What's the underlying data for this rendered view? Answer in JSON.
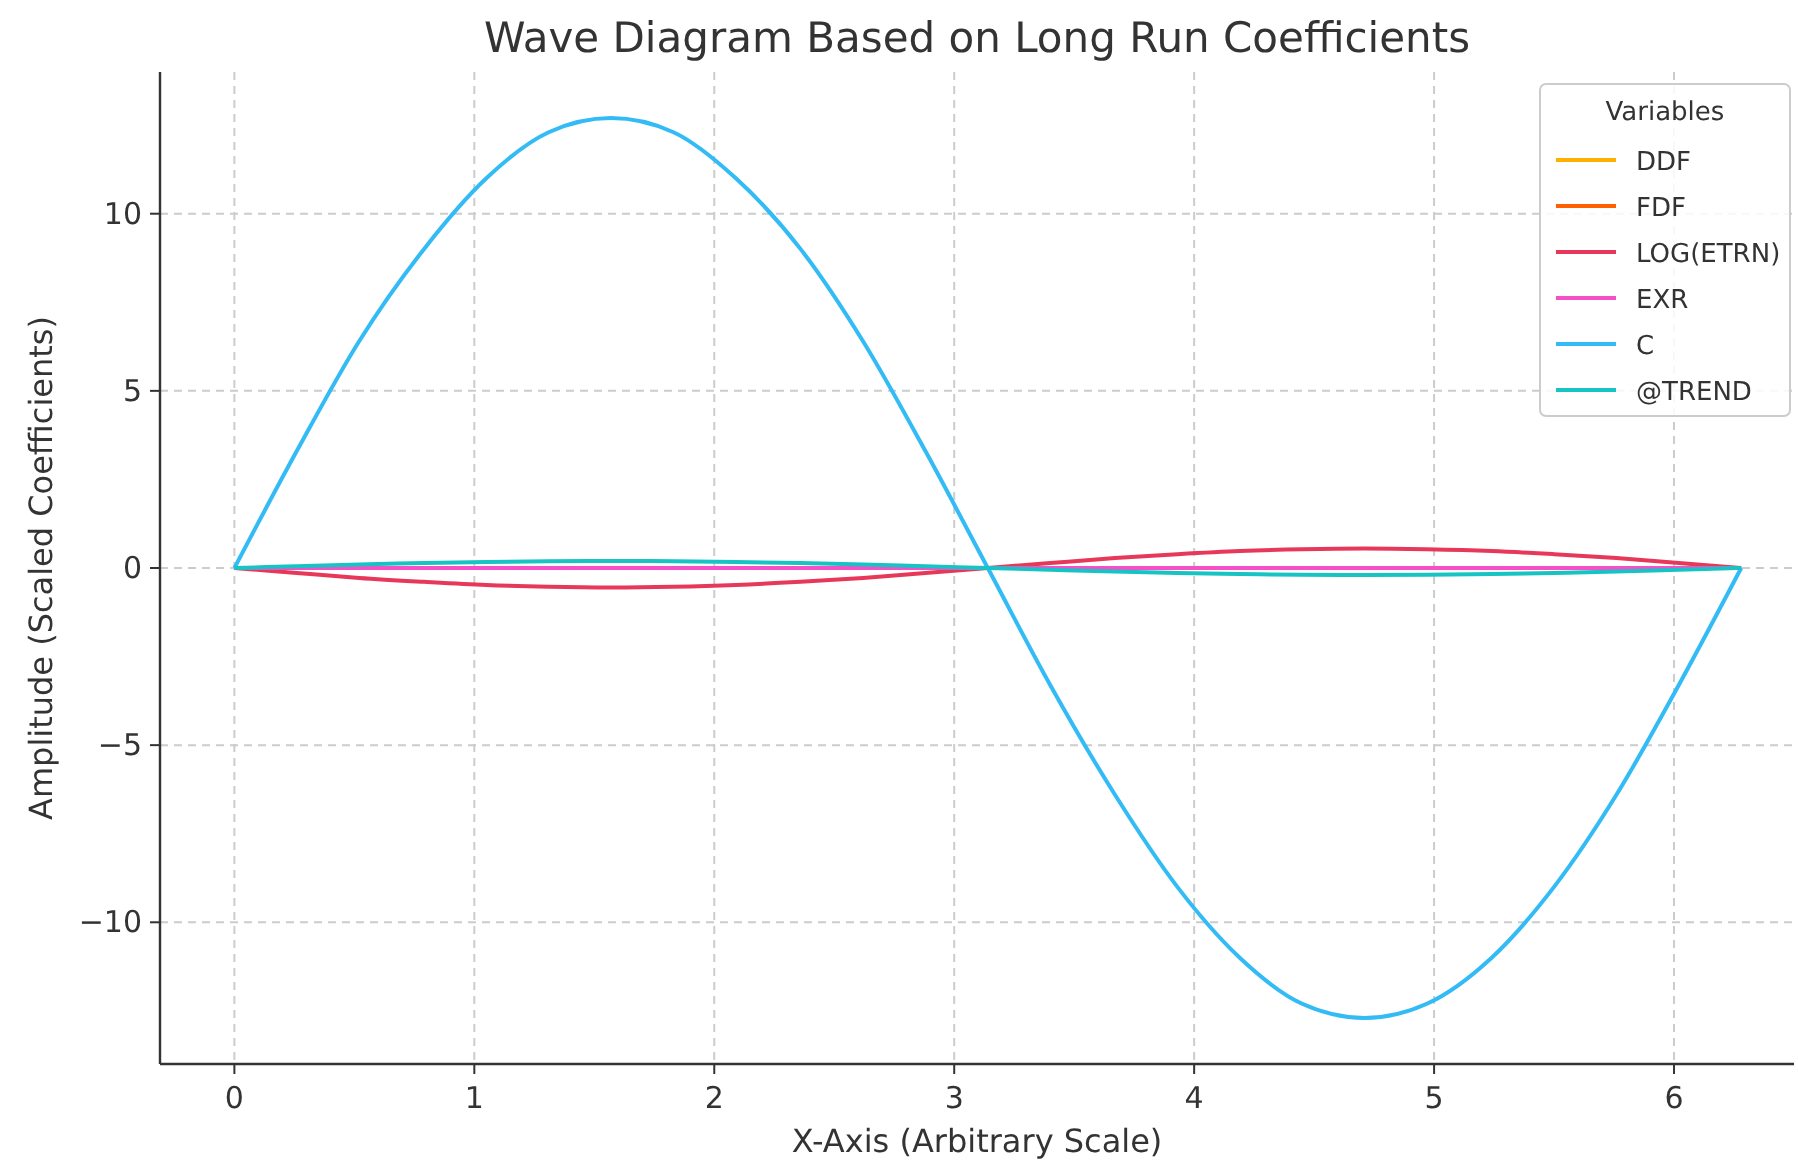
{
  "chart_data": {
    "type": "line",
    "title": "Wave Diagram Based on Long Run Coefficients",
    "xlabel": "X-Axis (Arbitrary Scale)",
    "ylabel": "Amplitude (Scaled Coefficients)",
    "legend_title": "Variables",
    "legend": "top right",
    "grid": true,
    "line_style": "solid",
    "x": [
      0,
      0.26,
      0.52,
      0.79,
      1.05,
      1.31,
      1.57,
      1.83,
      2.09,
      2.36,
      2.62,
      2.88,
      3.14,
      3.4,
      3.67,
      3.93,
      4.19,
      4.45,
      4.71,
      4.97,
      5.24,
      5.5,
      5.76,
      6.02,
      6.28
    ],
    "xlim": [
      -0.31,
      6.5
    ],
    "xticks": [
      0,
      1,
      2,
      3,
      4,
      5,
      6
    ],
    "ylim": [
      -14,
      14
    ],
    "yticks": [
      -10,
      -5,
      0,
      5,
      10
    ],
    "series": [
      {
        "name": "DDF",
        "color": "#ffb000",
        "values": [
          null,
          null,
          null,
          null,
          null,
          null,
          null,
          null,
          null,
          null,
          null,
          null,
          null,
          null,
          null,
          null,
          null,
          null,
          null,
          null,
          null,
          null,
          null,
          null,
          null
        ]
      },
      {
        "name": "FDF",
        "color": "#fe6100",
        "values": [
          null,
          null,
          null,
          null,
          null,
          null,
          null,
          null,
          null,
          null,
          null,
          null,
          null,
          null,
          null,
          null,
          null,
          null,
          null,
          null,
          null,
          null,
          null,
          null,
          null
        ]
      },
      {
        "name": "LOG(ETRN)",
        "color": "#e8385a",
        "values": [
          0,
          -0.14,
          -0.28,
          -0.39,
          -0.48,
          -0.53,
          -0.55,
          -0.53,
          -0.48,
          -0.39,
          -0.28,
          -0.14,
          0,
          0.14,
          0.28,
          0.39,
          0.48,
          0.53,
          0.55,
          0.53,
          0.48,
          0.39,
          0.28,
          0.14,
          0
        ]
      },
      {
        "name": "EXR",
        "color": "#f550c8",
        "values": [
          0,
          0,
          0,
          0,
          0,
          0,
          0,
          0,
          0,
          0,
          0,
          0,
          0,
          0,
          0,
          0,
          0,
          0,
          0,
          0,
          0,
          0,
          0,
          0,
          0
        ]
      },
      {
        "name": "C",
        "color": "#33bbf5",
        "values": [
          0,
          3.3,
          6.4,
          9.0,
          11.0,
          12.3,
          12.7,
          12.3,
          11.0,
          9.0,
          6.4,
          3.3,
          0,
          -3.3,
          -6.4,
          -9.0,
          -11.0,
          -12.3,
          -12.7,
          -12.3,
          -11.0,
          -9.0,
          -6.4,
          -3.3,
          0
        ]
      },
      {
        "name": "@TREND",
        "color": "#17c3c3",
        "values": [
          0,
          0.05,
          0.1,
          0.14,
          0.17,
          0.19,
          0.2,
          0.19,
          0.17,
          0.14,
          0.1,
          0.05,
          0,
          -0.05,
          -0.1,
          -0.14,
          -0.17,
          -0.19,
          -0.2,
          -0.19,
          -0.17,
          -0.14,
          -0.1,
          -0.05,
          0
        ]
      }
    ]
  }
}
